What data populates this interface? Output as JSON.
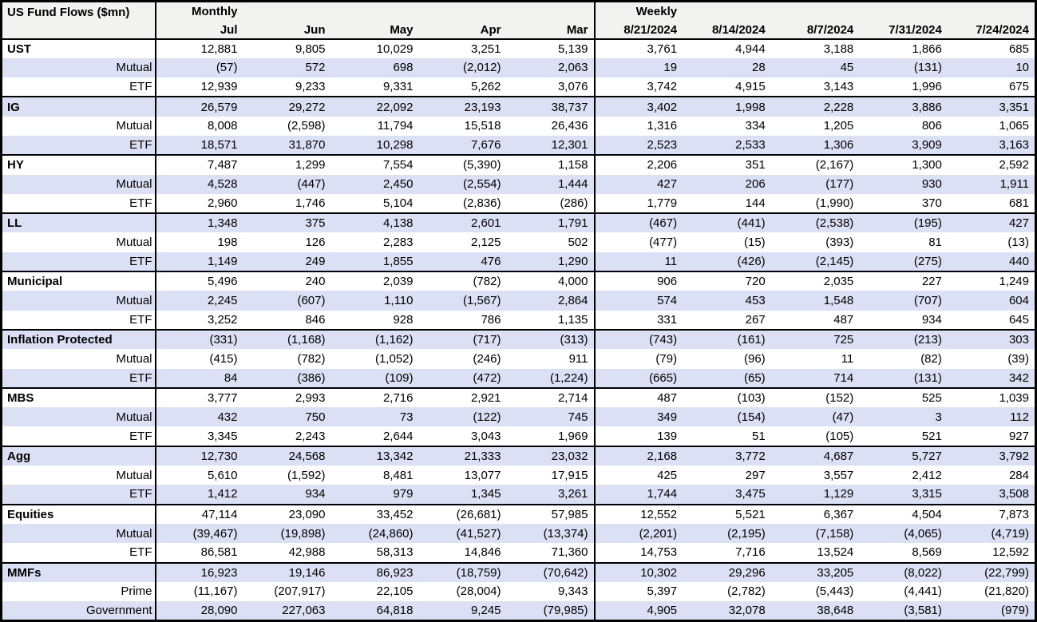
{
  "colors": {
    "stripe": "#dbe0f4",
    "header_bg": "#f2f2f0",
    "border": "#000000"
  },
  "chart_data": {
    "type": "table",
    "title": "US Fund Flows ($mn)",
    "group_headers": [
      "Monthly",
      "Weekly"
    ],
    "monthly_columns": [
      "Jul",
      "Jun",
      "May",
      "Apr",
      "Mar"
    ],
    "weekly_columns": [
      "8/21/2024",
      "8/14/2024",
      "8/7/2024",
      "7/31/2024",
      "7/24/2024"
    ],
    "rows": [
      {
        "label": "UST",
        "type": "section",
        "monthly": [
          "12,881",
          "9,805",
          "10,029",
          "3,251",
          "5,139"
        ],
        "weekly": [
          "3,761",
          "4,944",
          "3,188",
          "1,866",
          "685"
        ]
      },
      {
        "label": "Mutual",
        "type": "sub",
        "monthly": [
          "(57)",
          "572",
          "698",
          "(2,012)",
          "2,063"
        ],
        "weekly": [
          "19",
          "28",
          "45",
          "(131)",
          "10"
        ]
      },
      {
        "label": "ETF",
        "type": "sub",
        "monthly": [
          "12,939",
          "9,233",
          "9,331",
          "5,262",
          "3,076"
        ],
        "weekly": [
          "3,742",
          "4,915",
          "3,143",
          "1,996",
          "675"
        ]
      },
      {
        "label": "IG",
        "type": "section",
        "monthly": [
          "26,579",
          "29,272",
          "22,092",
          "23,193",
          "38,737"
        ],
        "weekly": [
          "3,402",
          "1,998",
          "2,228",
          "3,886",
          "3,351"
        ]
      },
      {
        "label": "Mutual",
        "type": "sub",
        "monthly": [
          "8,008",
          "(2,598)",
          "11,794",
          "15,518",
          "26,436"
        ],
        "weekly": [
          "1,316",
          "334",
          "1,205",
          "806",
          "1,065"
        ]
      },
      {
        "label": "ETF",
        "type": "sub",
        "monthly": [
          "18,571",
          "31,870",
          "10,298",
          "7,676",
          "12,301"
        ],
        "weekly": [
          "2,523",
          "2,533",
          "1,306",
          "3,909",
          "3,163"
        ]
      },
      {
        "label": "HY",
        "type": "section",
        "monthly": [
          "7,487",
          "1,299",
          "7,554",
          "(5,390)",
          "1,158"
        ],
        "weekly": [
          "2,206",
          "351",
          "(2,167)",
          "1,300",
          "2,592"
        ]
      },
      {
        "label": "Mutual",
        "type": "sub",
        "monthly": [
          "4,528",
          "(447)",
          "2,450",
          "(2,554)",
          "1,444"
        ],
        "weekly": [
          "427",
          "206",
          "(177)",
          "930",
          "1,911"
        ]
      },
      {
        "label": "ETF",
        "type": "sub",
        "monthly": [
          "2,960",
          "1,746",
          "5,104",
          "(2,836)",
          "(286)"
        ],
        "weekly": [
          "1,779",
          "144",
          "(1,990)",
          "370",
          "681"
        ]
      },
      {
        "label": "LL",
        "type": "section",
        "monthly": [
          "1,348",
          "375",
          "4,138",
          "2,601",
          "1,791"
        ],
        "weekly": [
          "(467)",
          "(441)",
          "(2,538)",
          "(195)",
          "427"
        ]
      },
      {
        "label": "Mutual",
        "type": "sub",
        "monthly": [
          "198",
          "126",
          "2,283",
          "2,125",
          "502"
        ],
        "weekly": [
          "(477)",
          "(15)",
          "(393)",
          "81",
          "(13)"
        ]
      },
      {
        "label": "ETF",
        "type": "sub",
        "monthly": [
          "1,149",
          "249",
          "1,855",
          "476",
          "1,290"
        ],
        "weekly": [
          "11",
          "(426)",
          "(2,145)",
          "(275)",
          "440"
        ]
      },
      {
        "label": "Municipal",
        "type": "section",
        "monthly": [
          "5,496",
          "240",
          "2,039",
          "(782)",
          "4,000"
        ],
        "weekly": [
          "906",
          "720",
          "2,035",
          "227",
          "1,249"
        ]
      },
      {
        "label": "Mutual",
        "type": "sub",
        "monthly": [
          "2,245",
          "(607)",
          "1,110",
          "(1,567)",
          "2,864"
        ],
        "weekly": [
          "574",
          "453",
          "1,548",
          "(707)",
          "604"
        ]
      },
      {
        "label": "ETF",
        "type": "sub",
        "monthly": [
          "3,252",
          "846",
          "928",
          "786",
          "1,135"
        ],
        "weekly": [
          "331",
          "267",
          "487",
          "934",
          "645"
        ]
      },
      {
        "label": "Inflation Protected",
        "type": "section",
        "monthly": [
          "(331)",
          "(1,168)",
          "(1,162)",
          "(717)",
          "(313)"
        ],
        "weekly": [
          "(743)",
          "(161)",
          "725",
          "(213)",
          "303"
        ]
      },
      {
        "label": "Mutual",
        "type": "sub",
        "monthly": [
          "(415)",
          "(782)",
          "(1,052)",
          "(246)",
          "911"
        ],
        "weekly": [
          "(79)",
          "(96)",
          "11",
          "(82)",
          "(39)"
        ]
      },
      {
        "label": "ETF",
        "type": "sub",
        "monthly": [
          "84",
          "(386)",
          "(109)",
          "(472)",
          "(1,224)"
        ],
        "weekly": [
          "(665)",
          "(65)",
          "714",
          "(131)",
          "342"
        ]
      },
      {
        "label": "MBS",
        "type": "section",
        "monthly": [
          "3,777",
          "2,993",
          "2,716",
          "2,921",
          "2,714"
        ],
        "weekly": [
          "487",
          "(103)",
          "(152)",
          "525",
          "1,039"
        ]
      },
      {
        "label": "Mutual",
        "type": "sub",
        "monthly": [
          "432",
          "750",
          "73",
          "(122)",
          "745"
        ],
        "weekly": [
          "349",
          "(154)",
          "(47)",
          "3",
          "112"
        ]
      },
      {
        "label": "ETF",
        "type": "sub",
        "monthly": [
          "3,345",
          "2,243",
          "2,644",
          "3,043",
          "1,969"
        ],
        "weekly": [
          "139",
          "51",
          "(105)",
          "521",
          "927"
        ]
      },
      {
        "label": "Agg",
        "type": "section",
        "monthly": [
          "12,730",
          "24,568",
          "13,342",
          "21,333",
          "23,032"
        ],
        "weekly": [
          "2,168",
          "3,772",
          "4,687",
          "5,727",
          "3,792"
        ]
      },
      {
        "label": "Mutual",
        "type": "sub",
        "monthly": [
          "5,610",
          "(1,592)",
          "8,481",
          "13,077",
          "17,915"
        ],
        "weekly": [
          "425",
          "297",
          "3,557",
          "2,412",
          "284"
        ]
      },
      {
        "label": "ETF",
        "type": "sub",
        "monthly": [
          "1,412",
          "934",
          "979",
          "1,345",
          "3,261"
        ],
        "weekly": [
          "1,744",
          "3,475",
          "1,129",
          "3,315",
          "3,508"
        ]
      },
      {
        "label": "Equities",
        "type": "section",
        "monthly": [
          "47,114",
          "23,090",
          "33,452",
          "(26,681)",
          "57,985"
        ],
        "weekly": [
          "12,552",
          "5,521",
          "6,367",
          "4,504",
          "7,873"
        ]
      },
      {
        "label": "Mutual",
        "type": "sub",
        "monthly": [
          "(39,467)",
          "(19,898)",
          "(24,860)",
          "(41,527)",
          "(13,374)"
        ],
        "weekly": [
          "(2,201)",
          "(2,195)",
          "(7,158)",
          "(4,065)",
          "(4,719)"
        ]
      },
      {
        "label": "ETF",
        "type": "sub",
        "monthly": [
          "86,581",
          "42,988",
          "58,313",
          "14,846",
          "71,360"
        ],
        "weekly": [
          "14,753",
          "7,716",
          "13,524",
          "8,569",
          "12,592"
        ]
      },
      {
        "label": "MMFs",
        "type": "section",
        "monthly": [
          "16,923",
          "19,146",
          "86,923",
          "(18,759)",
          "(70,642)"
        ],
        "weekly": [
          "10,302",
          "29,296",
          "33,205",
          "(8,022)",
          "(22,799)"
        ]
      },
      {
        "label": "Prime",
        "type": "sub",
        "monthly": [
          "(11,167)",
          "(207,917)",
          "22,105",
          "(28,004)",
          "9,343"
        ],
        "weekly": [
          "5,397",
          "(2,782)",
          "(5,443)",
          "(4,441)",
          "(21,820)"
        ]
      },
      {
        "label": "Government",
        "type": "sub",
        "monthly": [
          "28,090",
          "227,063",
          "64,818",
          "9,245",
          "(79,985)"
        ],
        "weekly": [
          "4,905",
          "32,078",
          "38,648",
          "(3,581)",
          "(979)"
        ]
      }
    ]
  }
}
